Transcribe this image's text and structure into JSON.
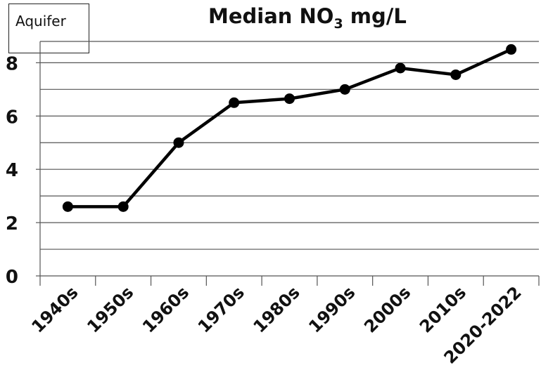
{
  "chart_data": {
    "type": "line",
    "title": {
      "main_before": "Median NO",
      "main_sub": "3",
      "main_after": " mg/L"
    },
    "legend": {
      "label": "Aquifer",
      "placement": "top-left"
    },
    "categories": [
      "1940s",
      "1950s",
      "1960s",
      "1970s",
      "1980s",
      "1990s",
      "2000s",
      "2010s",
      "2020-2022"
    ],
    "series": [
      {
        "values": [
          2.6,
          2.6,
          5.0,
          6.5,
          6.65,
          7.0,
          7.8,
          7.55,
          8.5
        ]
      }
    ],
    "ylim": [
      0,
      8.8
    ],
    "yticks": [
      0,
      2,
      4,
      6,
      8
    ],
    "gridlines": [
      1,
      2,
      3,
      4,
      5,
      6,
      7,
      8,
      8.8
    ],
    "grid": true,
    "line_color": "#000000"
  }
}
